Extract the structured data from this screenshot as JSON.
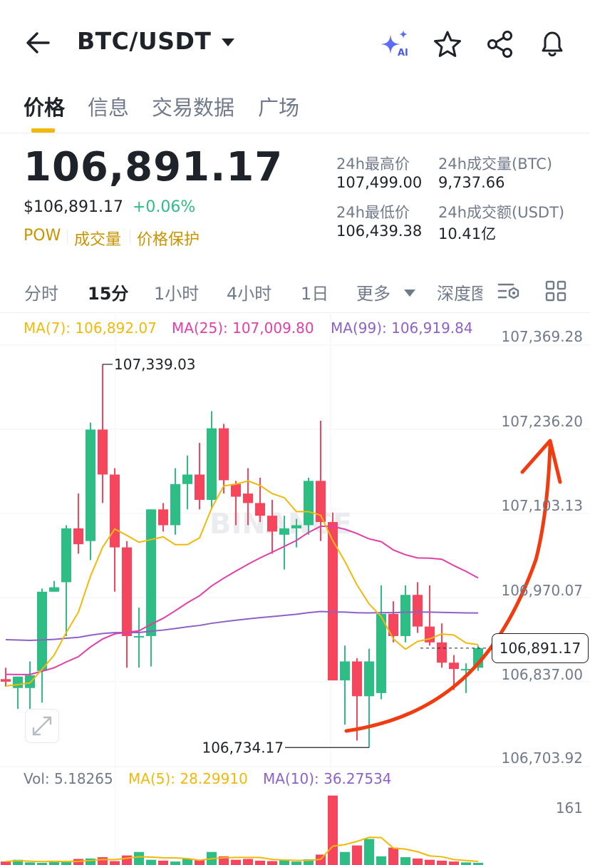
{
  "header": {
    "title": "BTC/USDT",
    "ai_badge": "AI",
    "icons": [
      "back-arrow-icon",
      "caret-down-icon",
      "ai-sparkle-icon",
      "star-icon",
      "share-icon",
      "bell-icon"
    ]
  },
  "tabs": [
    {
      "label": "价格",
      "active": true
    },
    {
      "label": "信息",
      "active": false
    },
    {
      "label": "交易数据",
      "active": false
    },
    {
      "label": "广场",
      "active": false
    }
  ],
  "ticker": {
    "last_price": "106,891.17",
    "usd_price": "$106,891.17",
    "change_pct": "+0.06%",
    "tags": [
      "POW",
      "成交量",
      "价格保护"
    ],
    "stats": {
      "high_label": "24h最高价",
      "high_value": "107,499.00",
      "low_label": "24h最低价",
      "low_value": "106,439.38",
      "vol_btc_label": "24h成交量(BTC)",
      "vol_btc_value": "9,737.66",
      "vol_usdt_label": "24h成交额(USDT)",
      "vol_usdt_value": "10.41亿"
    }
  },
  "intervals": {
    "items": [
      "分时",
      "15分",
      "1小时",
      "4小时",
      "1日",
      "更多",
      "深度图"
    ],
    "active": "15分"
  },
  "ma_legend": {
    "ma7": "MA(7): 106,892.07",
    "ma25": "MA(25): 107,009.80",
    "ma99": "MA(99): 106,919.84"
  },
  "colors": {
    "up": "#2ebd85",
    "down": "#f6465d",
    "ma7": "#f0b90b",
    "ma25": "#e040a7",
    "ma99": "#8c62c7",
    "accent": "#f0b90b",
    "arrow": "#f03c10"
  },
  "price_axis": [
    "107,369.28",
    "107,236.20",
    "107,103.13",
    "106,970.07",
    "106,837.00",
    "106,703.92"
  ],
  "current_price_label": "106,891.17",
  "annotations": {
    "high": "107,339.03",
    "low": "106,734.17"
  },
  "watermark": "BINANCE",
  "volume": {
    "vol": "Vol: 5.18265",
    "ma5": "MA(5): 28.29910",
    "ma10": "MA(10): 36.27534",
    "axis_max": "161"
  },
  "chart_data": {
    "type": "candlestick",
    "interval": "15m",
    "yrange": [
      106703.92,
      107369.28
    ],
    "candles": [
      {
        "o": 106842,
        "h": 106860,
        "l": 106830,
        "c": 106838
      },
      {
        "o": 106828,
        "h": 106846,
        "l": 106795,
        "c": 106846
      },
      {
        "o": 106828,
        "h": 106870,
        "l": 106760,
        "c": 106848
      },
      {
        "o": 106855,
        "h": 106985,
        "l": 106805,
        "c": 106980
      },
      {
        "o": 106980,
        "h": 106997,
        "l": 106980,
        "c": 106987
      },
      {
        "o": 106995,
        "h": 107085,
        "l": 106910,
        "c": 107080
      },
      {
        "o": 107080,
        "h": 107135,
        "l": 107040,
        "c": 107055
      },
      {
        "o": 107060,
        "h": 107247,
        "l": 107030,
        "c": 107236
      },
      {
        "o": 107236,
        "h": 107339,
        "l": 107120,
        "c": 107165
      },
      {
        "o": 107165,
        "h": 107175,
        "l": 106980,
        "c": 107050
      },
      {
        "o": 107050,
        "h": 107060,
        "l": 106860,
        "c": 106910
      },
      {
        "o": 106910,
        "h": 106955,
        "l": 106860,
        "c": 106910
      },
      {
        "o": 106910,
        "h": 107110,
        "l": 106862,
        "c": 107110
      },
      {
        "o": 107110,
        "h": 107120,
        "l": 107075,
        "c": 107085
      },
      {
        "o": 107085,
        "h": 107175,
        "l": 107070,
        "c": 107150
      },
      {
        "o": 107150,
        "h": 107195,
        "l": 107110,
        "c": 107165
      },
      {
        "o": 107165,
        "h": 107215,
        "l": 107110,
        "c": 107125
      },
      {
        "o": 107125,
        "h": 107265,
        "l": 107110,
        "c": 107238
      },
      {
        "o": 107238,
        "h": 107245,
        "l": 107135,
        "c": 107156
      },
      {
        "o": 107150,
        "h": 107155,
        "l": 107085,
        "c": 107130
      },
      {
        "o": 107135,
        "h": 107175,
        "l": 107085,
        "c": 107120
      },
      {
        "o": 107120,
        "h": 107160,
        "l": 107090,
        "c": 107100
      },
      {
        "o": 107100,
        "h": 107125,
        "l": 107040,
        "c": 107075
      },
      {
        "o": 107070,
        "h": 107100,
        "l": 107015,
        "c": 107080
      },
      {
        "o": 107080,
        "h": 107095,
        "l": 107050,
        "c": 107085
      },
      {
        "o": 107085,
        "h": 107160,
        "l": 107070,
        "c": 107155
      },
      {
        "o": 107155,
        "h": 107250,
        "l": 107060,
        "c": 107090
      },
      {
        "o": 107090,
        "h": 107105,
        "l": 106840,
        "c": 106840
      },
      {
        "o": 106840,
        "h": 106895,
        "l": 106770,
        "c": 106870
      },
      {
        "o": 106870,
        "h": 106875,
        "l": 106745,
        "c": 106815
      },
      {
        "o": 106815,
        "h": 106890,
        "l": 106734,
        "c": 106870
      },
      {
        "o": 106820,
        "h": 106990,
        "l": 106810,
        "c": 106945
      },
      {
        "o": 106945,
        "h": 106965,
        "l": 106900,
        "c": 106910
      },
      {
        "o": 106910,
        "h": 106990,
        "l": 106900,
        "c": 106975
      },
      {
        "o": 106975,
        "h": 106995,
        "l": 106915,
        "c": 106925
      },
      {
        "o": 106925,
        "h": 106990,
        "l": 106895,
        "c": 106900
      },
      {
        "o": 106900,
        "h": 106930,
        "l": 106860,
        "c": 106868
      },
      {
        "o": 106868,
        "h": 106880,
        "l": 106825,
        "c": 106858
      },
      {
        "o": 106858,
        "h": 106867,
        "l": 106820,
        "c": 106858
      },
      {
        "o": 106860,
        "h": 106895,
        "l": 106855,
        "c": 106891
      }
    ],
    "volume_values": [
      8,
      12,
      6,
      5,
      10,
      7,
      14,
      15,
      18,
      9,
      22,
      30,
      12,
      10,
      8,
      14,
      11,
      30,
      20,
      12,
      14,
      10,
      9,
      12,
      8,
      13,
      24,
      160,
      30,
      45,
      60,
      20,
      40,
      18,
      15,
      12,
      10,
      8,
      6,
      5
    ]
  }
}
